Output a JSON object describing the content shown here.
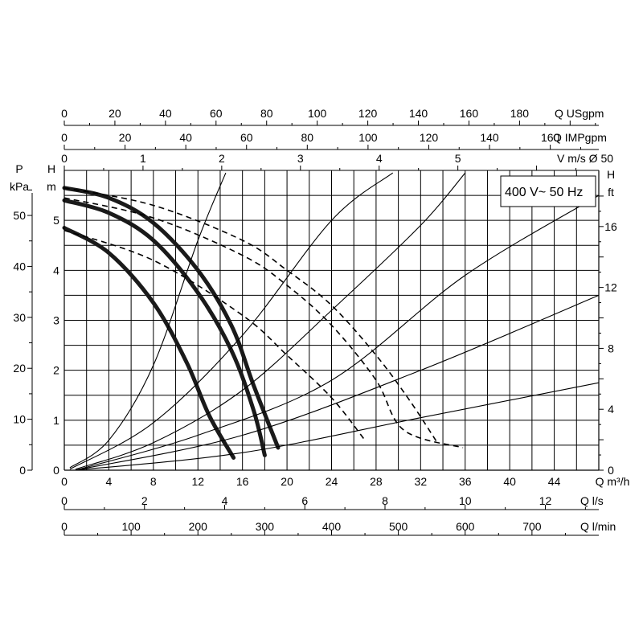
{
  "chart_data": {
    "type": "line",
    "legend": "400 V~ 50 Hz",
    "x": {
      "label": "Q m³/h",
      "range": [
        0,
        48
      ],
      "ticks": [
        0,
        4,
        8,
        12,
        16,
        20,
        24,
        28,
        32,
        36,
        40,
        44
      ]
    },
    "y": {
      "label": "H m",
      "range": [
        0,
        6
      ],
      "ticks": [
        0,
        1,
        2,
        3,
        4,
        5
      ]
    },
    "secondary_axes": {
      "top_usgpm": {
        "label": "Q USgpm",
        "ticks": [
          0,
          20,
          40,
          60,
          80,
          100,
          120,
          140,
          160,
          180
        ]
      },
      "top_impgpm": {
        "label": "Q IMPgpm",
        "ticks": [
          0,
          20,
          40,
          60,
          80,
          100,
          120,
          140,
          160
        ]
      },
      "top_velocity": {
        "label": "V m/s Ø 50",
        "ticks": [
          0,
          1,
          2,
          3,
          4,
          5
        ]
      },
      "left_pressure": {
        "label_top": "P",
        "label_unit": "kPa",
        "ticks": [
          0,
          10,
          20,
          30,
          40,
          50
        ]
      },
      "right_head_ft": {
        "label_top": "H",
        "label_unit": "ft",
        "ticks": [
          0,
          4,
          8,
          12,
          16
        ]
      },
      "bottom_ls": {
        "label": "Q l/s",
        "ticks": [
          0,
          2,
          4,
          6,
          8,
          10,
          12
        ]
      },
      "bottom_lmin": {
        "label": "Q l/min",
        "ticks": [
          0,
          100,
          200,
          300,
          400,
          500,
          600,
          700
        ]
      }
    },
    "series": [
      {
        "style": "thick",
        "points": [
          [
            0,
            5.65
          ],
          [
            4,
            5.45
          ],
          [
            8,
            4.95
          ],
          [
            12,
            4.0
          ],
          [
            15,
            2.9
          ],
          [
            17,
            1.7
          ],
          [
            19.2,
            0.45
          ]
        ]
      },
      {
        "style": "thick",
        "points": [
          [
            0,
            5.4
          ],
          [
            4,
            5.15
          ],
          [
            8,
            4.6
          ],
          [
            12,
            3.55
          ],
          [
            15,
            2.4
          ],
          [
            17,
            1.2
          ],
          [
            18,
            0.3
          ]
        ]
      },
      {
        "style": "thick",
        "points": [
          [
            0,
            4.85
          ],
          [
            4,
            4.35
          ],
          [
            8,
            3.35
          ],
          [
            11,
            2.15
          ],
          [
            13,
            1.1
          ],
          [
            15.2,
            0.25
          ]
        ]
      },
      {
        "style": "dashed",
        "points": [
          [
            0,
            5.65
          ],
          [
            8,
            5.3
          ],
          [
            16,
            4.6
          ],
          [
            20,
            4.0
          ],
          [
            24,
            3.3
          ],
          [
            28,
            2.3
          ],
          [
            31,
            1.4
          ],
          [
            33.5,
            0.55
          ]
        ]
      },
      {
        "style": "dashed",
        "points": [
          [
            0,
            5.45
          ],
          [
            8,
            5.05
          ],
          [
            16,
            4.3
          ],
          [
            20,
            3.7
          ],
          [
            24,
            2.9
          ],
          [
            28,
            1.8
          ],
          [
            30.5,
            0.8
          ],
          [
            35.8,
            0.45
          ]
        ]
      },
      {
        "style": "dashed",
        "points": [
          [
            0,
            4.8
          ],
          [
            8,
            4.2
          ],
          [
            16,
            3.1
          ],
          [
            20,
            2.3
          ],
          [
            24,
            1.45
          ],
          [
            27,
            0.6
          ]
        ]
      },
      {
        "style": "thin",
        "points": [
          [
            0.5,
            0.05
          ],
          [
            4,
            0.6
          ],
          [
            8,
            2.1
          ],
          [
            12,
            4.6
          ],
          [
            14.5,
            5.95
          ]
        ]
      },
      {
        "style": "thin",
        "points": [
          [
            0.5,
            0.02
          ],
          [
            8,
            0.95
          ],
          [
            16,
            2.7
          ],
          [
            24,
            5.0
          ],
          [
            29.5,
            5.95
          ]
        ]
      },
      {
        "style": "thin",
        "points": [
          [
            1,
            0.02
          ],
          [
            8,
            0.55
          ],
          [
            16,
            1.6
          ],
          [
            24,
            3.2
          ],
          [
            32,
            4.9
          ],
          [
            36,
            5.95
          ]
        ]
      },
      {
        "style": "thin",
        "points": [
          [
            1,
            0.0
          ],
          [
            12,
            0.7
          ],
          [
            24,
            1.8
          ],
          [
            36,
            3.9
          ],
          [
            48,
            5.5
          ]
        ]
      },
      {
        "style": "thin",
        "points": [
          [
            1,
            0.0
          ],
          [
            16,
            0.7
          ],
          [
            32,
            2.0
          ],
          [
            48,
            3.5
          ]
        ]
      },
      {
        "style": "thin",
        "points": [
          [
            1,
            0.0
          ],
          [
            16,
            0.35
          ],
          [
            32,
            1.05
          ],
          [
            48,
            1.75
          ]
        ]
      }
    ]
  }
}
